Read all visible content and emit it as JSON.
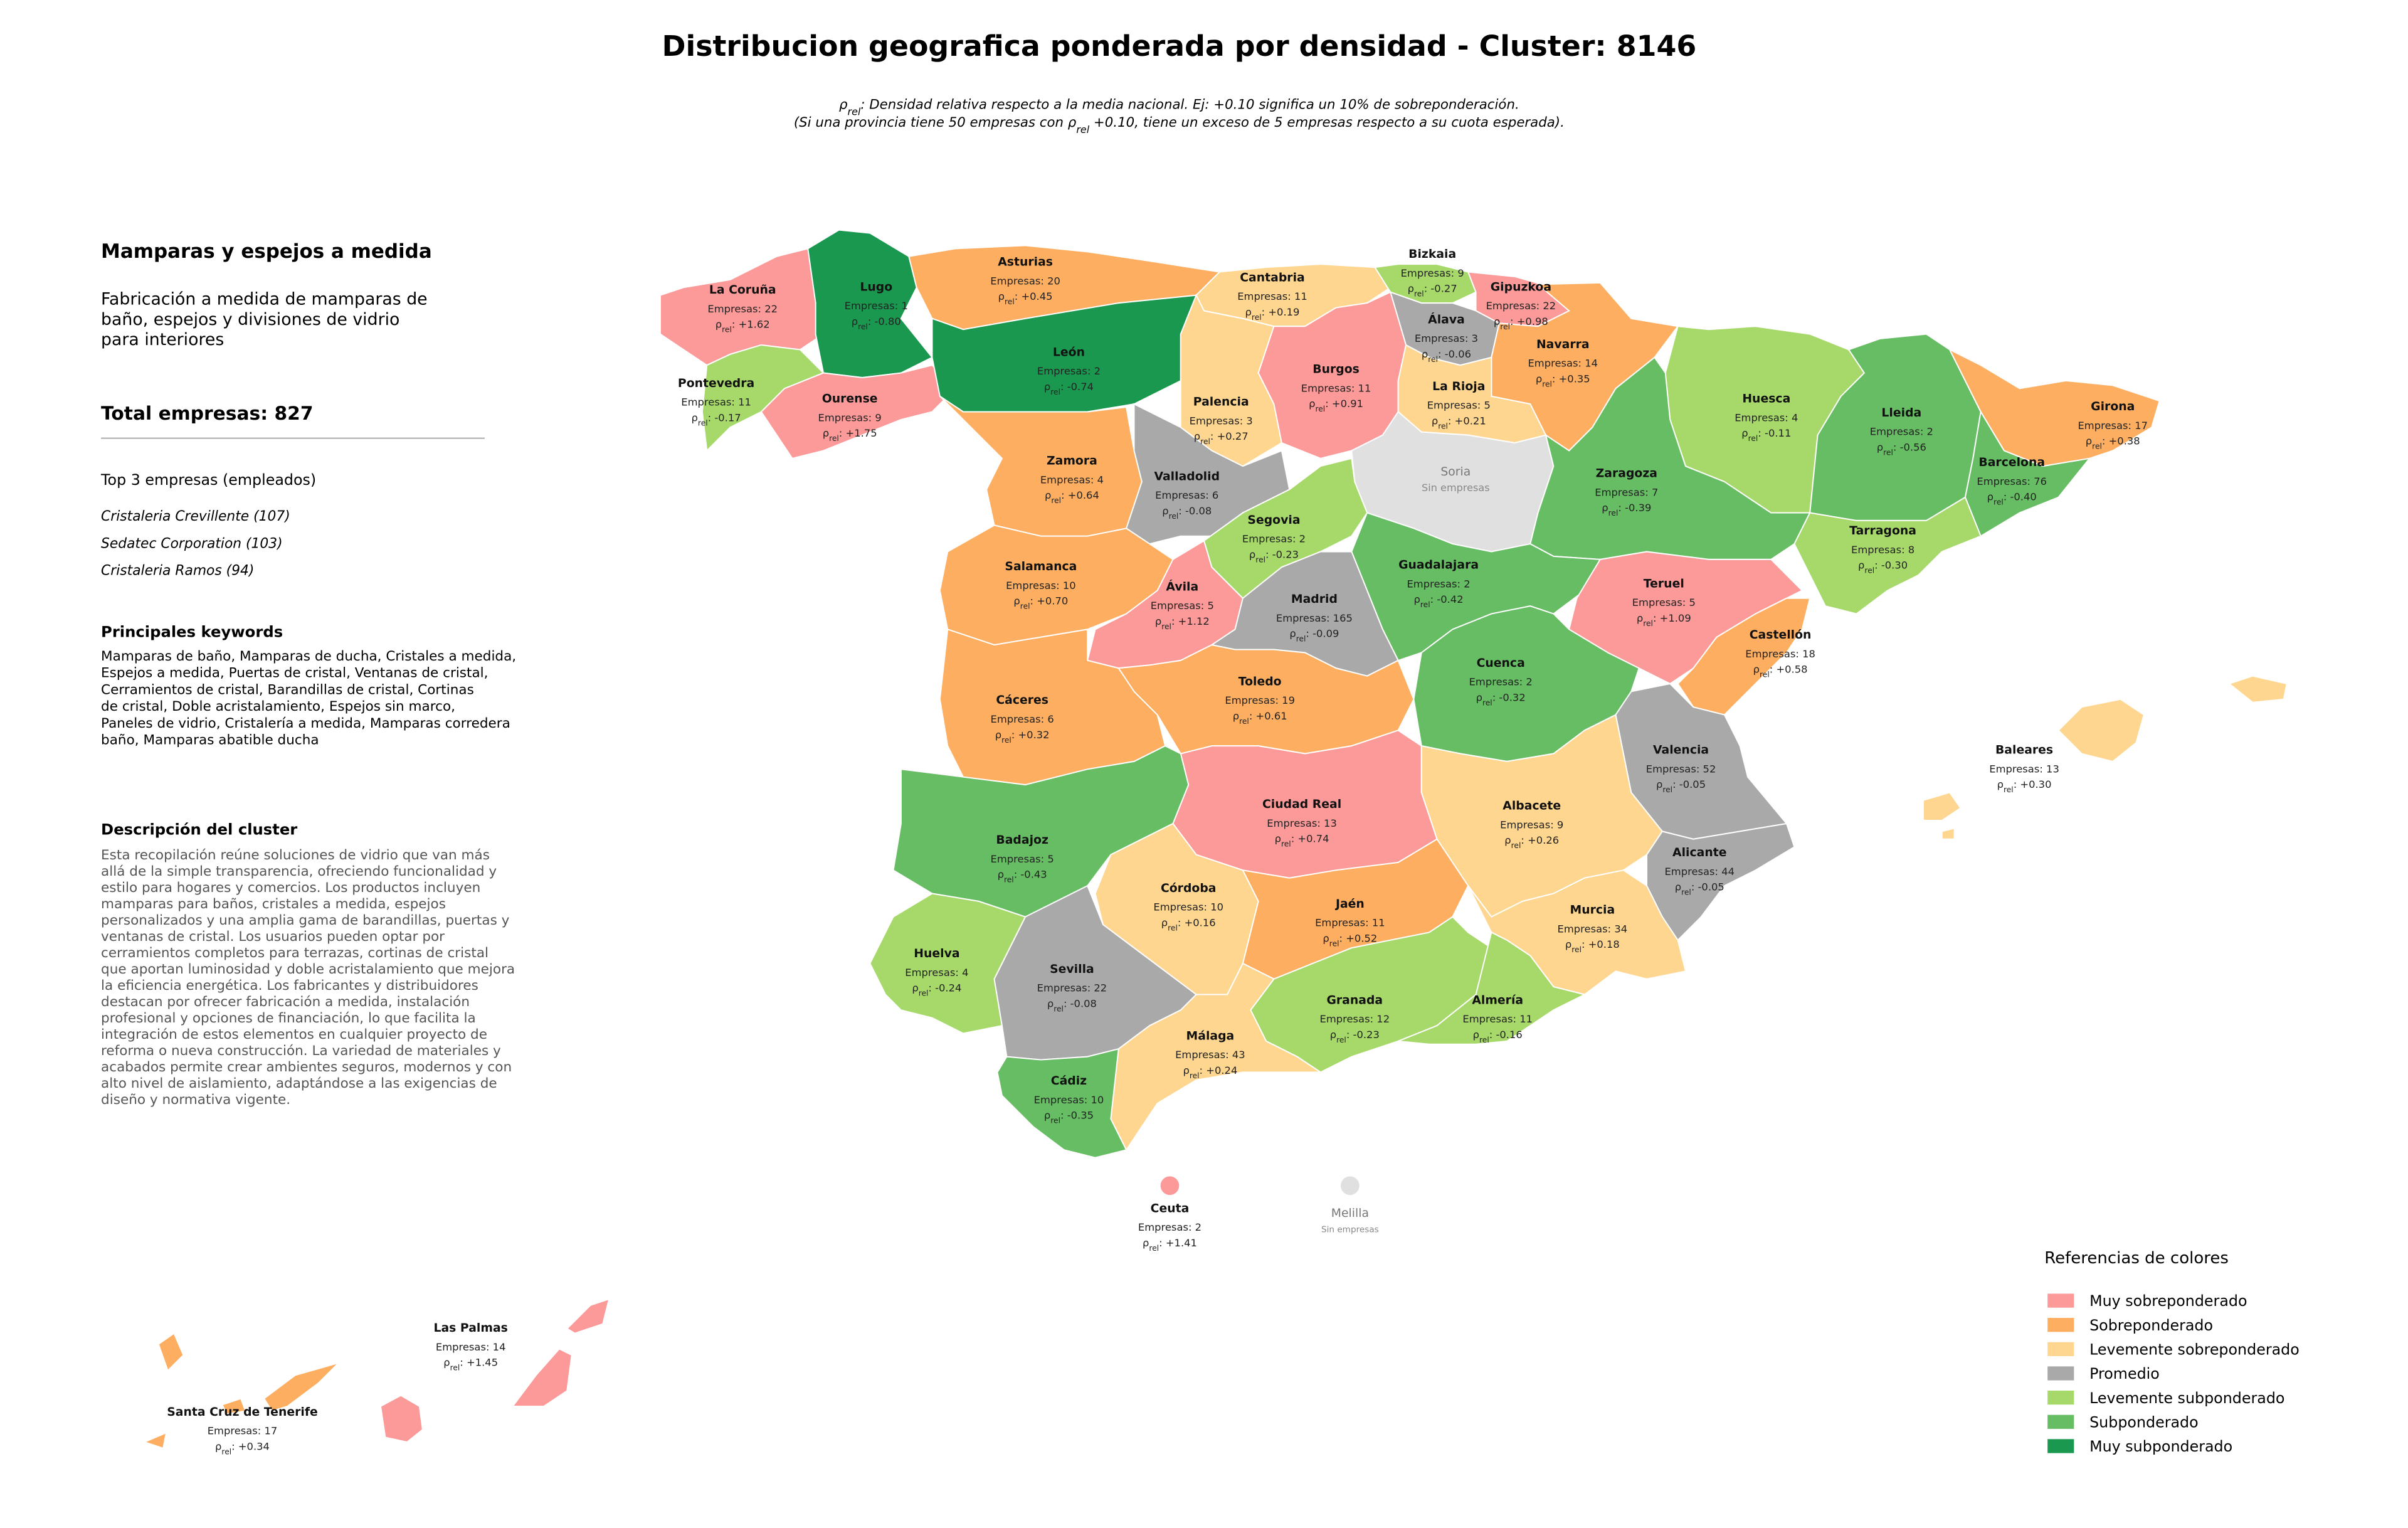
{
  "title": "Distribucion geografica ponderada por densidad - Cluster: 8146",
  "subtitle": [
    [
      {
        "text": "ρ"
      },
      {
        "text": "rel",
        "sub": true
      },
      {
        "text": ": Densidad relativa respecto a la media nacional. Ej: +0.10 significa un 10% de sobreponderación."
      }
    ],
    [
      {
        "text": "(Si una provincia tiene 50 empresas con "
      },
      {
        "text": "ρ"
      },
      {
        "text": "rel",
        "sub": true
      },
      {
        "text": " +0.10, tiene un exceso de 5 empresas respecto a su cuota esperada)."
      }
    ]
  ],
  "panel": {
    "heading": "Mamparas y espejos a medida",
    "summary": [
      "Fabricación a medida de mamparas de",
      "baño, espejos y divisiones de vidrio",
      "para interiores"
    ],
    "total": "Total empresas: 827",
    "top_title": "Top 3 empresas (empleados)",
    "top": [
      "Cristaleria Crevillente (107)",
      "Sedatec Corporation (103)",
      "Cristaleria Ramos (94)"
    ],
    "keywords_title": "Principales keywords",
    "keywords": [
      "Mamparas de baño, Mamparas de ducha, Cristales a medida,",
      "Espejos a medida, Puertas de cristal, Ventanas de cristal,",
      "Cerramientos de cristal, Barandillas de cristal, Cortinas",
      "de cristal, Doble acristalamiento, Espejos sin marco,",
      "Paneles de vidrio, Cristalería a medida, Mamparas corredera",
      "baño, Mamparas abatible ducha"
    ],
    "description_title": "Descripción del cluster",
    "description": [
      "Esta recopilación reúne soluciones de vidrio que van más",
      "allá de la simple transparencia, ofreciendo funcionalidad y",
      "estilo para hogares y comercios. Los productos incluyen",
      "mamparas para baños, cristales a medida, espejos",
      "personalizados y una amplia gama de barandillas, puertas y",
      "ventanas de cristal. Los usuarios pueden optar por",
      "cerramientos completos para terrazas, cortinas de cristal",
      "que aportan luminosidad y doble acristalamiento que mejora",
      "la eficiencia energética. Los fabricantes y distribuidores",
      "destacan por ofrecer fabricación a medida, instalación",
      "profesional y opciones de financiación, lo que facilita la",
      "integración de estos elementos en cualquier proyecto de",
      "reforma o nueva construcción. La variedad de materiales y",
      "acabados permite crear ambientes seguros, modernos y con",
      "alto nivel de aislamiento, adaptándose a las exigencias de",
      "diseño y normativa vigente."
    ]
  },
  "rho_label": [
    {
      "text": "ρ"
    },
    {
      "text": "rel",
      "sub": true
    },
    {
      "text": ": "
    }
  ],
  "provinces": [
    {
      "name": "La Coruña",
      "empresas": "Empresas: 22",
      "rho": "+1.62",
      "color": "#fb9a99"
    },
    {
      "name": "Lugo",
      "empresas": "Empresas: 1",
      "rho": "-0.80",
      "color": "#1a9850"
    },
    {
      "name": "Asturias",
      "empresas": "Empresas: 20",
      "rho": "+0.45",
      "color": "#fdae61"
    },
    {
      "name": "Cantabria",
      "empresas": "Empresas: 11",
      "rho": "+0.19",
      "color": "#fed690"
    },
    {
      "name": "Bizkaia",
      "empresas": "Empresas: 9",
      "rho": "-0.27",
      "color": "#a6d96a"
    },
    {
      "name": "Gipuzkoa",
      "empresas": "Empresas: 22",
      "rho": "+0.98",
      "color": "#fb9a99"
    },
    {
      "name": "Álava",
      "empresas": "Empresas: 3",
      "rho": "-0.06",
      "color": "#a9a9a9"
    },
    {
      "name": "Navarra",
      "empresas": "Empresas: 14",
      "rho": "+0.35",
      "color": "#fdae61"
    },
    {
      "name": "Pontevedra",
      "empresas": "Empresas: 11",
      "rho": "-0.17",
      "color": "#a6d96a"
    },
    {
      "name": "Ourense",
      "empresas": "Empresas: 9",
      "rho": "+1.75",
      "color": "#fb9a99"
    },
    {
      "name": "León",
      "empresas": "Empresas: 2",
      "rho": "-0.74",
      "color": "#1a9850"
    },
    {
      "name": "Palencia",
      "empresas": "Empresas: 3",
      "rho": "+0.27",
      "color": "#fed690"
    },
    {
      "name": "Burgos",
      "empresas": "Empresas: 11",
      "rho": "+0.91",
      "color": "#fb9a99"
    },
    {
      "name": "La Rioja",
      "empresas": "Empresas: 5",
      "rho": "+0.21",
      "color": "#fed690"
    },
    {
      "name": "Huesca",
      "empresas": "Empresas: 4",
      "rho": "-0.11",
      "color": "#a6d96a"
    },
    {
      "name": "Lleida",
      "empresas": "Empresas: 2",
      "rho": "-0.56",
      "color": "#66bd63"
    },
    {
      "name": "Girona",
      "empresas": "Empresas: 17",
      "rho": "+0.38",
      "color": "#fdae61"
    },
    {
      "name": "Barcelona",
      "empresas": "Empresas: 76",
      "rho": "-0.40",
      "color": "#66bd63"
    },
    {
      "name": "Zamora",
      "empresas": "Empresas: 4",
      "rho": "+0.64",
      "color": "#fdae61"
    },
    {
      "name": "Valladolid",
      "empresas": "Empresas: 6",
      "rho": "-0.08",
      "color": "#a9a9a9"
    },
    {
      "name": "Soria",
      "status": "Sin empresas",
      "color": "#e0e0e0"
    },
    {
      "name": "Zaragoza",
      "empresas": "Empresas: 7",
      "rho": "-0.39",
      "color": "#66bd63"
    },
    {
      "name": "Segovia",
      "empresas": "Empresas: 2",
      "rho": "-0.23",
      "color": "#a6d96a"
    },
    {
      "name": "Salamanca",
      "empresas": "Empresas: 10",
      "rho": "+0.70",
      "color": "#fdae61"
    },
    {
      "name": "Guadalajara",
      "empresas": "Empresas: 2",
      "rho": "-0.42",
      "color": "#66bd63"
    },
    {
      "name": "Tarragona",
      "empresas": "Empresas: 8",
      "rho": "-0.30",
      "color": "#a6d96a"
    },
    {
      "name": "Ávila",
      "empresas": "Empresas: 5",
      "rho": "+1.12",
      "color": "#fb9a99"
    },
    {
      "name": "Madrid",
      "empresas": "Empresas: 165",
      "rho": "-0.09",
      "color": "#a9a9a9"
    },
    {
      "name": "Teruel",
      "empresas": "Empresas: 5",
      "rho": "+1.09",
      "color": "#fb9a99"
    },
    {
      "name": "Castellón",
      "empresas": "Empresas: 18",
      "rho": "+0.58",
      "color": "#fdae61"
    },
    {
      "name": "Cáceres",
      "empresas": "Empresas: 6",
      "rho": "+0.32",
      "color": "#fdae61"
    },
    {
      "name": "Toledo",
      "empresas": "Empresas: 19",
      "rho": "+0.61",
      "color": "#fdae61"
    },
    {
      "name": "Cuenca",
      "empresas": "Empresas: 2",
      "rho": "-0.32",
      "color": "#66bd63"
    },
    {
      "name": "Valencia",
      "empresas": "Empresas: 52",
      "rho": "-0.05",
      "color": "#a9a9a9"
    },
    {
      "name": "Baleares",
      "empresas": "Empresas: 13",
      "rho": "+0.30",
      "color": "#fed690"
    },
    {
      "name": "Ciudad Real",
      "empresas": "Empresas: 13",
      "rho": "+0.74",
      "color": "#fb9a99"
    },
    {
      "name": "Albacete",
      "empresas": "Empresas: 9",
      "rho": "+0.26",
      "color": "#fed690"
    },
    {
      "name": "Badajoz",
      "empresas": "Empresas: 5",
      "rho": "-0.43",
      "color": "#66bd63"
    },
    {
      "name": "Alicante",
      "empresas": "Empresas: 44",
      "rho": "-0.05",
      "color": "#a9a9a9"
    },
    {
      "name": "Córdoba",
      "empresas": "Empresas: 10",
      "rho": "+0.16",
      "color": "#fed690"
    },
    {
      "name": "Jaén",
      "empresas": "Empresas: 11",
      "rho": "+0.52",
      "color": "#fdae61"
    },
    {
      "name": "Murcia",
      "empresas": "Empresas: 34",
      "rho": "+0.18",
      "color": "#fed690"
    },
    {
      "name": "Huelva",
      "empresas": "Empresas: 4",
      "rho": "-0.24",
      "color": "#a6d96a"
    },
    {
      "name": "Sevilla",
      "empresas": "Empresas: 22",
      "rho": "-0.08",
      "color": "#a9a9a9"
    },
    {
      "name": "Granada",
      "empresas": "Empresas: 12",
      "rho": "-0.23",
      "color": "#a6d96a"
    },
    {
      "name": "Almería",
      "empresas": "Empresas: 11",
      "rho": "-0.16",
      "color": "#a6d96a"
    },
    {
      "name": "Málaga",
      "empresas": "Empresas: 43",
      "rho": "+0.24",
      "color": "#fed690"
    },
    {
      "name": "Cádiz",
      "empresas": "Empresas: 10",
      "rho": "-0.35",
      "color": "#66bd63"
    },
    {
      "name": "Ceuta",
      "empresas": "Empresas: 2",
      "rho": "+1.41",
      "color": "#fb9a99"
    },
    {
      "name": "Melilla",
      "status": "Sin empresas",
      "color": "#e0e0e0"
    },
    {
      "name": "Las Palmas",
      "empresas": "Empresas: 14",
      "rho": "+1.45",
      "color": "#fb9a99"
    },
    {
      "name": "Santa Cruz de Tenerife",
      "empresas": "Empresas: 17",
      "rho": "+0.34",
      "color": "#fdae61"
    }
  ],
  "legend": {
    "title": "Referencias de colores",
    "items": [
      {
        "name": "Muy sobreponderado",
        "color": "#fb9a99"
      },
      {
        "name": "Sobreponderado",
        "color": "#fdae61"
      },
      {
        "name": "Levemente sobreponderado",
        "color": "#fed690"
      },
      {
        "name": "Promedio",
        "color": "#a9a9a9"
      },
      {
        "name": "Levemente subponderado",
        "color": "#a6d96a"
      },
      {
        "name": "Subponderado",
        "color": "#66bd63"
      },
      {
        "name": "Muy subponderado",
        "color": "#1a9850"
      }
    ]
  }
}
